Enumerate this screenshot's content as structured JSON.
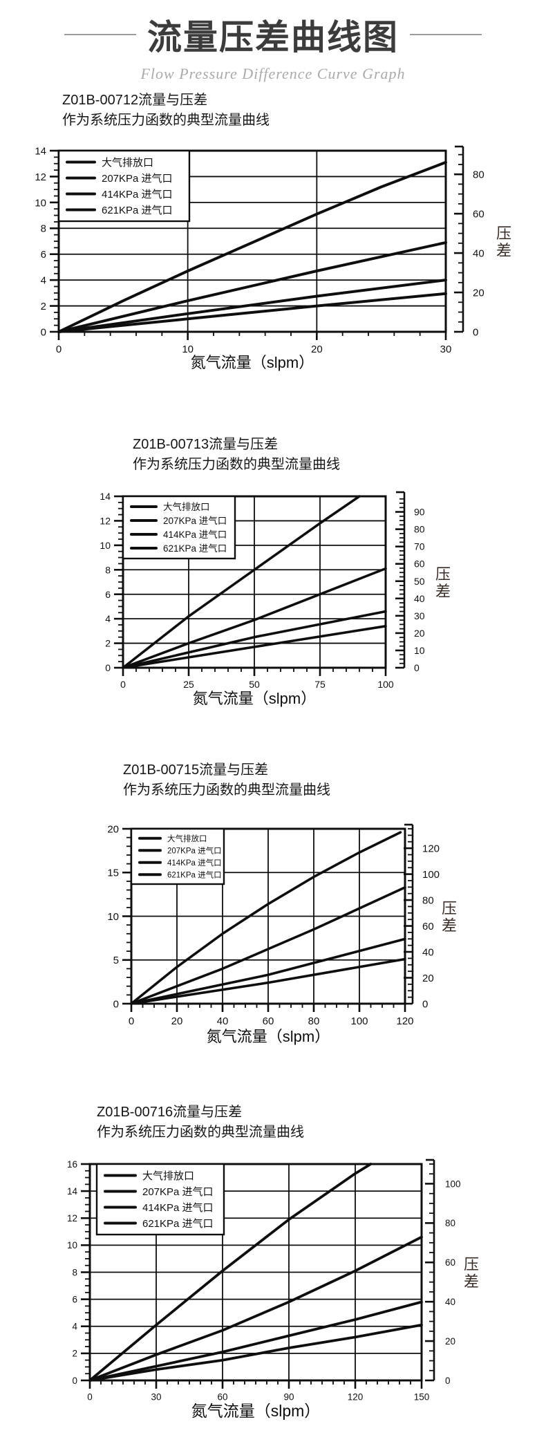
{
  "header": {
    "title": "流量压差曲线图",
    "subtitle": "Flow Pressure Difference Curve Graph"
  },
  "colors": {
    "line": "#0e0e0e",
    "grid": "#1a1a1a",
    "pressure_label": "#3a2c26",
    "title": "#3c3c3c",
    "subtitle": "#aaaaaa"
  },
  "chart_data": [
    {
      "type": "line",
      "model": "Z01B-00712",
      "title": "Z01B-00712流量与压差",
      "subtitle": "作为系统压力函数的典型流量曲线",
      "xlabel": "氮气流量（slpm）",
      "right_axis_label": "压差",
      "grid": true,
      "legend_position": "top-left",
      "x_axis": {
        "min": 0,
        "max": 30,
        "ticks": [
          0,
          10,
          20,
          30
        ],
        "minor_step": 2
      },
      "y_axis_left": {
        "min": 0,
        "max": 14,
        "ticks": [
          0,
          2,
          4,
          6,
          8,
          10,
          12,
          14
        ],
        "minor_step": 0.5
      },
      "y_axis_right": {
        "min": 0,
        "max": 92,
        "labels": [
          0,
          20,
          40,
          60,
          80
        ],
        "minor_step": 5
      },
      "series": [
        {
          "name": "大气排放口",
          "points": [
            [
              0,
              0
            ],
            [
              5,
              2.4
            ],
            [
              10,
              4.7
            ],
            [
              15,
              6.9
            ],
            [
              20,
              9.1
            ],
            [
              25,
              11.2
            ],
            [
              30,
              13.1
            ]
          ]
        },
        {
          "name": "207KPa 进气口",
          "points": [
            [
              0,
              0
            ],
            [
              10,
              2.4
            ],
            [
              20,
              4.7
            ],
            [
              30,
              6.9
            ]
          ]
        },
        {
          "name": "414KPa 进气口",
          "points": [
            [
              0,
              0
            ],
            [
              10,
              1.4
            ],
            [
              20,
              2.75
            ],
            [
              30,
              4.0
            ]
          ]
        },
        {
          "name": "621KPa 进气口",
          "points": [
            [
              0,
              0
            ],
            [
              10,
              1.0
            ],
            [
              20,
              2.0
            ],
            [
              30,
              2.95
            ]
          ]
        }
      ]
    },
    {
      "type": "line",
      "model": "Z01B-00713",
      "title": "Z01B-00713流量与压差",
      "subtitle": "作为系统压力函数的典型流量曲线",
      "xlabel": "氮气流量（slpm）",
      "right_axis_label": "压差",
      "grid": true,
      "legend_position": "top-left",
      "x_axis": {
        "min": 0,
        "max": 100,
        "ticks": [
          0,
          25,
          50,
          75,
          100
        ],
        "minor_step": 5
      },
      "y_axis_left": {
        "min": 0,
        "max": 14,
        "ticks": [
          0,
          2,
          4,
          6,
          8,
          10,
          12,
          14
        ],
        "minor_step": 0.5
      },
      "y_axis_right": {
        "min": 0,
        "max": 99,
        "labels": [
          0,
          10,
          20,
          30,
          40,
          50,
          60,
          70,
          80,
          90
        ],
        "minor_step": 2.5
      },
      "series": [
        {
          "name": "大气排放口",
          "points": [
            [
              0,
              0
            ],
            [
              25,
              4.2
            ],
            [
              50,
              8.0
            ],
            [
              75,
              11.8
            ],
            [
              90,
              14
            ]
          ]
        },
        {
          "name": "207KPa 进气口",
          "points": [
            [
              0,
              0
            ],
            [
              25,
              2.0
            ],
            [
              50,
              3.9
            ],
            [
              75,
              6.0
            ],
            [
              100,
              8.1
            ]
          ]
        },
        {
          "name": "414KPa 进气口",
          "points": [
            [
              0,
              0
            ],
            [
              50,
              2.5
            ],
            [
              100,
              4.6
            ]
          ]
        },
        {
          "name": "621KPa 进气口",
          "points": [
            [
              0,
              0
            ],
            [
              50,
              1.7
            ],
            [
              100,
              3.4
            ]
          ]
        }
      ]
    },
    {
      "type": "line",
      "model": "Z01B-00715",
      "title": "Z01B-00715流量与压差",
      "subtitle": "作为系统压力函数的典型流量曲线",
      "xlabel": "氮气流量（slpm）",
      "right_axis_label": "压差",
      "grid": true,
      "legend_position": "top-left",
      "x_axis": {
        "min": 0,
        "max": 120,
        "ticks": [
          0,
          20,
          40,
          60,
          80,
          100,
          120
        ],
        "minor_step": 5
      },
      "y_axis_left": {
        "min": 0,
        "max": 20,
        "ticks": [
          0,
          5,
          10,
          15,
          20
        ],
        "minor_step": 1
      },
      "y_axis_right": {
        "min": 0,
        "max": 135,
        "labels": [
          0,
          20,
          40,
          60,
          80,
          100,
          120
        ],
        "minor_step": 5
      },
      "series": [
        {
          "name": "大气排放口",
          "points": [
            [
              0,
              0
            ],
            [
              20,
              4.2
            ],
            [
              40,
              8.0
            ],
            [
              60,
              11.4
            ],
            [
              80,
              14.5
            ],
            [
              100,
              17.3
            ],
            [
              118,
              19.6
            ]
          ]
        },
        {
          "name": "207KPa 进气口",
          "points": [
            [
              0,
              0
            ],
            [
              40,
              4.0
            ],
            [
              80,
              8.5
            ],
            [
              120,
              13.3
            ]
          ]
        },
        {
          "name": "414KPa 进气口",
          "points": [
            [
              0,
              0
            ],
            [
              60,
              3.3
            ],
            [
              120,
              7.4
            ]
          ]
        },
        {
          "name": "621KPa 进气口",
          "points": [
            [
              0,
              0
            ],
            [
              60,
              2.4
            ],
            [
              120,
              5.1
            ]
          ]
        }
      ]
    },
    {
      "type": "line",
      "model": "Z01B-00716",
      "title": "Z01B-00716流量与压差",
      "subtitle": "作为系统压力函数的典型流量曲线",
      "xlabel": "氮气流量（slpm）",
      "right_axis_label": "压差",
      "grid": true,
      "legend_position": "top-left",
      "x_axis": {
        "min": 0,
        "max": 150,
        "ticks": [
          0,
          30,
          60,
          90,
          120,
          150
        ],
        "minor_step": 5
      },
      "y_axis_left": {
        "min": 0,
        "max": 16,
        "ticks": [
          0,
          2,
          4,
          6,
          8,
          10,
          12,
          14,
          16
        ],
        "minor_step": 0.5
      },
      "y_axis_right": {
        "min": 0,
        "max": 110,
        "labels": [
          0,
          20,
          40,
          60,
          80,
          100
        ],
        "minor_step": 5
      },
      "series": [
        {
          "name": "大气排放口",
          "points": [
            [
              0,
              0
            ],
            [
              30,
              4.1
            ],
            [
              60,
              8.1
            ],
            [
              90,
              11.9
            ],
            [
              120,
              15.3
            ],
            [
              127,
              16
            ]
          ]
        },
        {
          "name": "207KPa 进气口",
          "points": [
            [
              0,
              0
            ],
            [
              30,
              1.9
            ],
            [
              60,
              3.7
            ],
            [
              90,
              5.8
            ],
            [
              120,
              8.1
            ],
            [
              150,
              10.6
            ]
          ]
        },
        {
          "name": "414KPa 进气口",
          "points": [
            [
              0,
              0
            ],
            [
              30,
              1.05
            ],
            [
              60,
              2.1
            ],
            [
              90,
              3.3
            ],
            [
              120,
              4.5
            ],
            [
              150,
              5.8
            ]
          ]
        },
        {
          "name": "621KPa 进气口",
          "points": [
            [
              0,
              0
            ],
            [
              30,
              0.8
            ],
            [
              60,
              1.5
            ],
            [
              90,
              2.4
            ],
            [
              120,
              3.2
            ],
            [
              150,
              4.1
            ]
          ]
        }
      ]
    }
  ]
}
